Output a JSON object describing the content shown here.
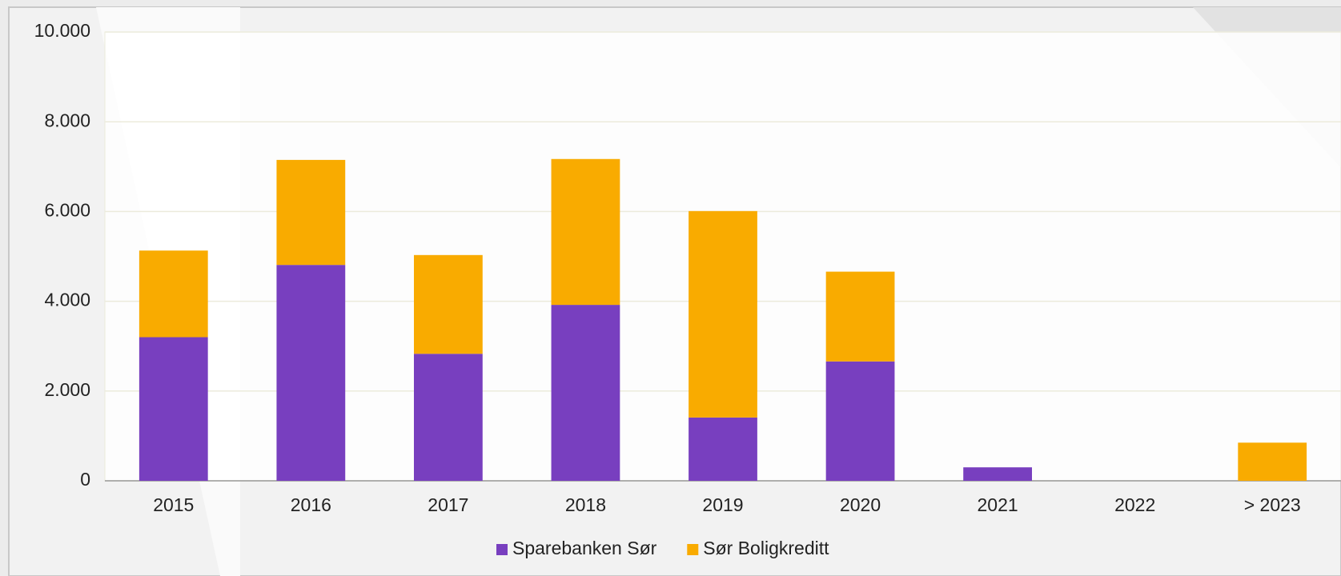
{
  "chart_data": {
    "type": "bar",
    "stacked": true,
    "categories": [
      "2015",
      "2016",
      "2017",
      "2018",
      "2019",
      "2020",
      "2021",
      "2022",
      "> 2023"
    ],
    "series": [
      {
        "name": "Sparebanken Sør",
        "color": "#783fbf",
        "values": [
          3200,
          4810,
          2830,
          3920,
          1410,
          2660,
          300,
          0,
          0
        ]
      },
      {
        "name": "Sør Boligkreditt",
        "color": "#f9ab00",
        "values": [
          1930,
          2340,
          2200,
          3250,
          4600,
          2000,
          0,
          0,
          850
        ]
      }
    ],
    "ylim": [
      0,
      10000
    ],
    "yticks": [
      0,
      {
        "value": 2000,
        "label": "2.000"
      },
      {
        "value": 4000,
        "label": "4.000"
      },
      {
        "value": 6000,
        "label": "6.000"
      },
      {
        "value": 8000,
        "label": "8.000"
      },
      {
        "value": 10000,
        "label": "10.000"
      }
    ],
    "grid": true,
    "legend": "bottom"
  }
}
